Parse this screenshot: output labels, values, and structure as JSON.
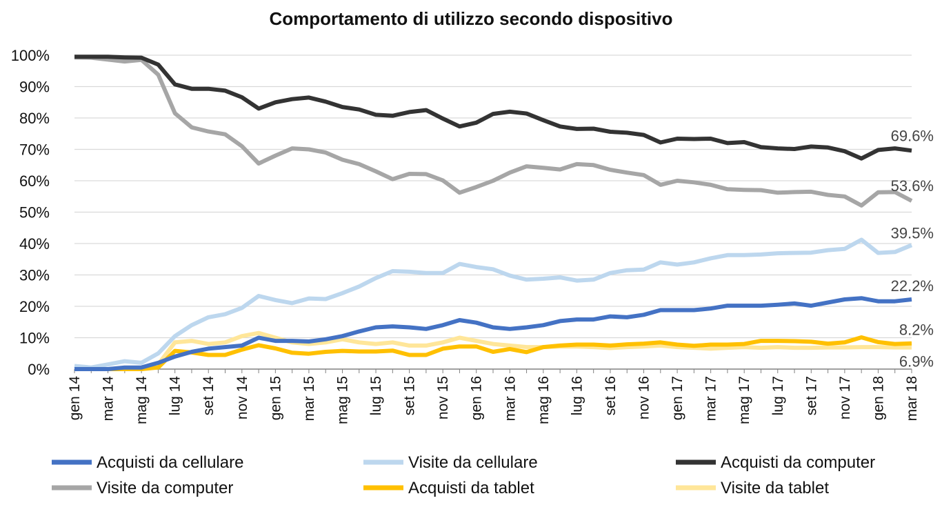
{
  "chart_data": {
    "type": "line",
    "title": "Comportamento di utilizzo secondo dispositivo",
    "xlabel": "",
    "ylabel": "",
    "ylim": [
      0,
      100
    ],
    "yticks": [
      "0%",
      "10%",
      "20%",
      "30%",
      "40%",
      "50%",
      "60%",
      "70%",
      "80%",
      "90%",
      "100%"
    ],
    "grid": true,
    "legend_position": "bottom",
    "x": [
      "gen 14",
      "feb 14",
      "mar 14",
      "apr 14",
      "mag 14",
      "giu 14",
      "lug 14",
      "ago 14",
      "set 14",
      "ott 14",
      "nov 14",
      "dic 14",
      "gen 15",
      "feb 15",
      "mar 15",
      "apr 15",
      "mag 15",
      "giu 15",
      "lug 15",
      "ago 15",
      "set 15",
      "ott 15",
      "nov 15",
      "dic 15",
      "gen 16",
      "feb 16",
      "mar 16",
      "apr 16",
      "mag 16",
      "giu 16",
      "lug 16",
      "ago 16",
      "set 16",
      "ott 16",
      "nov 16",
      "dic 16",
      "gen 17",
      "feb 17",
      "mar 17",
      "apr 17",
      "mag 17",
      "giu 17",
      "lug 17",
      "ago 17",
      "set 17",
      "ott 17",
      "nov 17",
      "dic 17",
      "gen 18",
      "feb 18",
      "mar 18"
    ],
    "x_tick_labels": [
      "gen 14",
      "mar 14",
      "mag 14",
      "lug 14",
      "set 14",
      "nov 14",
      "gen 15",
      "mar 15",
      "mag 15",
      "lug 15",
      "set 15",
      "nov 15",
      "gen 16",
      "mar 16",
      "mag 16",
      "lug 16",
      "set 16",
      "nov 16",
      "gen 17",
      "mar 17",
      "mag 17",
      "lug 17",
      "set 17",
      "nov 17",
      "gen 18",
      "mar 18"
    ],
    "series": [
      {
        "name": "Acquisti da cellulare",
        "color": "#4472C4",
        "end_label": "22.2%",
        "values": [
          0,
          0,
          0,
          0.5,
          0.5,
          2,
          4,
          5.5,
          6.5,
          7,
          7.5,
          10,
          9,
          9,
          8.8,
          9.5,
          10.5,
          12,
          13.3,
          13.6,
          13.3,
          12.8,
          14,
          15.6,
          14.8,
          13.3,
          12.8,
          13.3,
          14,
          15.3,
          15.8,
          15.8,
          16.8,
          16.5,
          17.3,
          18.8,
          18.8,
          18.8,
          19.3,
          20.2,
          20.2,
          20.2,
          20.5,
          20.9,
          20.2,
          21.2,
          22.2,
          22.6,
          21.6,
          21.6,
          22.2
        ]
      },
      {
        "name": "Visite da cellulare",
        "color": "#BDD7EE",
        "end_label": "39.5%",
        "values": [
          1,
          0.5,
          1.5,
          2.5,
          2,
          5,
          10.5,
          14,
          16.5,
          17.5,
          19.5,
          23.3,
          22,
          21,
          22.5,
          22.3,
          24.2,
          26.3,
          29,
          31.2,
          31,
          30.6,
          30.6,
          33.5,
          32.5,
          31.8,
          29.8,
          28.5,
          28.8,
          29.2,
          28.2,
          28.5,
          30.6,
          31.5,
          31.7,
          34,
          33.3,
          34,
          35.3,
          36.3,
          36.3,
          36.5,
          36.9,
          37,
          37.1,
          37.9,
          38.3,
          41.2,
          37,
          37.3,
          39.5
        ]
      },
      {
        "name": "Acquisti da computer",
        "color": "#333333",
        "end_label": "69.6%",
        "values": [
          99.5,
          99.5,
          99.5,
          99.3,
          99.2,
          97,
          90.7,
          89.3,
          89.3,
          88.7,
          86.6,
          83,
          85,
          86,
          86.5,
          85.2,
          83.5,
          82.7,
          81,
          80.7,
          81.9,
          82.5,
          79.8,
          77.3,
          78.5,
          81.3,
          82,
          81.4,
          79.3,
          77.3,
          76.5,
          76.6,
          75.6,
          75.3,
          74.6,
          72.2,
          73.4,
          73.3,
          73.4,
          72,
          72.3,
          70.7,
          70.3,
          70.1,
          70.9,
          70.6,
          69.4,
          67.1,
          69.8,
          70.3,
          69.6
        ]
      },
      {
        "name": "Visite da computer",
        "color": "#A6A6A6",
        "end_label": "53.6%",
        "values": [
          99.3,
          99.2,
          98.6,
          98,
          98.5,
          93.8,
          81.5,
          77,
          75.7,
          74.8,
          71,
          65.5,
          68,
          70.3,
          70,
          69,
          66.7,
          65.3,
          63,
          60.5,
          62.2,
          62.1,
          60.1,
          56.2,
          58,
          60,
          62.6,
          64.6,
          64.1,
          63.6,
          65.3,
          65,
          63.5,
          62.6,
          61.8,
          58.7,
          60,
          59.5,
          58.7,
          57.3,
          57.1,
          57,
          56.2,
          56.4,
          56.5,
          55.5,
          55,
          52.1,
          56.3,
          56.4,
          53.6
        ]
      },
      {
        "name": "Acquisti da tablet",
        "color": "#FFC000",
        "end_label": "8.2%",
        "values": [
          0,
          0,
          0,
          0,
          0,
          0.5,
          5.8,
          5.3,
          4.5,
          4.5,
          6.2,
          7.6,
          6.6,
          5.2,
          4.9,
          5.5,
          5.8,
          5.6,
          5.6,
          5.9,
          4.5,
          4.5,
          6.5,
          7.2,
          7.2,
          5.5,
          6.4,
          5.4,
          7,
          7.5,
          7.8,
          7.8,
          7.5,
          7.9,
          8.1,
          8.5,
          7.8,
          7.4,
          7.8,
          7.8,
          8,
          9,
          9,
          8.9,
          8.7,
          8.1,
          8.5,
          10.1,
          8.6,
          8,
          8.2
        ]
      },
      {
        "name": "Visite da tablet",
        "color": "#FFE699",
        "end_label": "6.9%",
        "values": [
          0,
          0,
          0,
          0,
          0,
          1.5,
          8.5,
          9,
          8,
          8.5,
          10.5,
          11.5,
          10,
          8.5,
          8,
          8.5,
          9.5,
          8.5,
          8,
          8.5,
          7.5,
          7.5,
          8.5,
          10,
          9,
          8,
          7.5,
          7,
          7,
          7.2,
          7.2,
          7,
          6.7,
          7,
          7.2,
          7.5,
          7,
          6.8,
          6.5,
          6.8,
          7,
          6.8,
          7,
          6.8,
          6.8,
          6.9,
          6.9,
          7,
          7,
          6.9,
          6.9
        ]
      }
    ]
  }
}
